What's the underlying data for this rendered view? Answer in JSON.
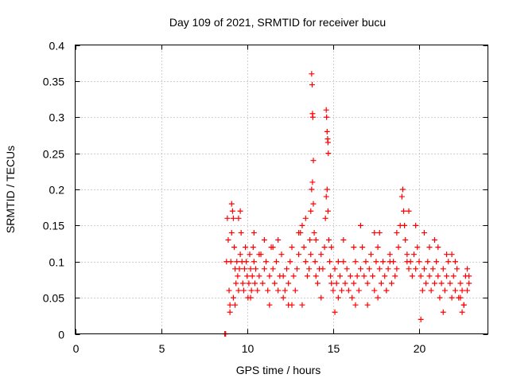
{
  "chart_data": {
    "type": "scatter",
    "title": "Day 109 of 2021, SRMTID for receiver bucu",
    "xlabel": "GPS time / hours",
    "ylabel": "SRMTID / TECUs",
    "xlim": [
      0,
      24
    ],
    "ylim": [
      0,
      0.4
    ],
    "xticks": [
      0,
      5,
      10,
      15,
      20
    ],
    "xtick_labels": [
      "0",
      "5",
      "10",
      "15",
      "20"
    ],
    "yticks": [
      0,
      0.05,
      0.1,
      0.15,
      0.2,
      0.25,
      0.3,
      0.35,
      0.4
    ],
    "ytick_labels": [
      "0",
      "0.05",
      "0.1",
      "0.15",
      "0.2",
      "0.25",
      "0.3",
      "0.35",
      "0.4"
    ],
    "grid": true,
    "marker": "+",
    "color": "#ff0000",
    "series": [
      {
        "name": "SRMTID",
        "x": [
          8.7,
          8.75,
          8.8,
          8.85,
          8.9,
          8.95,
          9.0,
          9.05,
          9.1,
          9.15,
          9.2,
          9.25,
          9.3,
          9.35,
          9.4,
          9.45,
          9.5,
          9.55,
          9.6,
          9.65,
          9.7,
          9.75,
          9.8,
          9.85,
          9.9,
          9.95,
          10.0,
          10.05,
          10.1,
          10.15,
          10.2,
          10.25,
          10.3,
          10.35,
          10.4,
          10.45,
          10.5,
          10.6,
          10.7,
          10.8,
          10.9,
          11.0,
          11.1,
          11.2,
          11.3,
          11.4,
          11.5,
          11.6,
          11.7,
          11.8,
          11.9,
          12.0,
          12.1,
          12.2,
          12.3,
          12.4,
          12.5,
          12.6,
          12.7,
          12.8,
          12.9,
          13.0,
          13.1,
          13.2,
          13.3,
          13.4,
          13.5,
          13.6,
          13.65,
          13.7,
          13.75,
          13.8,
          13.85,
          13.9,
          13.95,
          14.0,
          14.1,
          14.2,
          14.3,
          14.4,
          14.5,
          14.55,
          14.6,
          14.65,
          14.7,
          14.75,
          14.8,
          14.85,
          14.9,
          15.0,
          15.1,
          15.2,
          15.3,
          15.4,
          15.5,
          15.6,
          15.7,
          15.8,
          15.9,
          16.0,
          16.1,
          16.2,
          16.3,
          16.4,
          16.5,
          16.6,
          16.7,
          16.8,
          16.9,
          17.0,
          17.1,
          17.2,
          17.3,
          17.4,
          17.5,
          17.6,
          17.7,
          17.8,
          17.9,
          18.0,
          18.1,
          18.2,
          18.3,
          18.4,
          18.5,
          18.6,
          18.7,
          18.8,
          18.9,
          19.0,
          19.05,
          19.1,
          19.15,
          19.2,
          19.3,
          19.4,
          19.5,
          19.6,
          19.7,
          19.8,
          19.9,
          20.0,
          20.1,
          20.2,
          20.3,
          20.4,
          20.5,
          20.6,
          20.7,
          20.8,
          20.9,
          21.0,
          21.1,
          21.2,
          21.3,
          21.4,
          21.5,
          21.6,
          21.7,
          21.8,
          21.9,
          22.0,
          22.1,
          22.2,
          22.3,
          22.4,
          22.5,
          22.6,
          22.7,
          22.8,
          22.9,
          13.75,
          13.78,
          13.8,
          13.82,
          13.85,
          14.6,
          14.62,
          14.65,
          14.68,
          14.7,
          14.72,
          9.1,
          9.3,
          9.5,
          10.2,
          11.0,
          12.1,
          13.2,
          13.4,
          14.0,
          14.3,
          15.3,
          16.2,
          17.4,
          18.3,
          19.4,
          20.3,
          21.1,
          22.1,
          22.6,
          9.0,
          9.6,
          10.4,
          11.3,
          11.8,
          12.6,
          13.0,
          14.9,
          15.6,
          16.6,
          17.0,
          17.7,
          18.7,
          19.8,
          20.6,
          21.4,
          21.9,
          22.4,
          22.8,
          9.2,
          10.7,
          11.5,
          12.4,
          13.7,
          15.1,
          16.3,
          17.6,
          18.1,
          19.3,
          20.1,
          20.9,
          21.6,
          22.5,
          22.9
        ],
        "y": [
          0.0,
          0.0,
          0.1,
          0.16,
          0.13,
          0.06,
          0.04,
          0.1,
          0.14,
          0.17,
          0.16,
          0.12,
          0.09,
          0.07,
          0.1,
          0.08,
          0.06,
          0.09,
          0.11,
          0.14,
          0.1,
          0.07,
          0.06,
          0.09,
          0.12,
          0.1,
          0.08,
          0.05,
          0.07,
          0.11,
          0.09,
          0.06,
          0.08,
          0.12,
          0.1,
          0.07,
          0.09,
          0.06,
          0.08,
          0.11,
          0.07,
          0.09,
          0.1,
          0.06,
          0.08,
          0.12,
          0.09,
          0.07,
          0.1,
          0.06,
          0.08,
          0.11,
          0.08,
          0.06,
          0.09,
          0.07,
          0.1,
          0.12,
          0.08,
          0.06,
          0.09,
          0.11,
          0.14,
          0.15,
          0.12,
          0.1,
          0.08,
          0.09,
          0.13,
          0.17,
          0.2,
          0.21,
          0.18,
          0.14,
          0.1,
          0.08,
          0.07,
          0.09,
          0.11,
          0.09,
          0.12,
          0.16,
          0.19,
          0.2,
          0.17,
          0.13,
          0.1,
          0.08,
          0.07,
          0.06,
          0.09,
          0.07,
          0.05,
          0.08,
          0.06,
          0.1,
          0.07,
          0.09,
          0.06,
          0.08,
          0.05,
          0.07,
          0.1,
          0.08,
          0.06,
          0.09,
          0.12,
          0.08,
          0.1,
          0.07,
          0.09,
          0.11,
          0.08,
          0.06,
          0.1,
          0.12,
          0.09,
          0.07,
          0.1,
          0.08,
          0.06,
          0.09,
          0.11,
          0.07,
          0.1,
          0.08,
          0.09,
          0.12,
          0.15,
          0.19,
          0.2,
          0.17,
          0.15,
          0.13,
          0.11,
          0.09,
          0.1,
          0.08,
          0.11,
          0.09,
          0.12,
          0.1,
          0.08,
          0.06,
          0.09,
          0.07,
          0.1,
          0.08,
          0.06,
          0.09,
          0.07,
          0.1,
          0.08,
          0.05,
          0.07,
          0.09,
          0.06,
          0.08,
          0.1,
          0.07,
          0.05,
          0.08,
          0.06,
          0.09,
          0.05,
          0.07,
          0.06,
          0.04,
          0.08,
          0.06,
          0.07,
          0.36,
          0.345,
          0.305,
          0.3,
          0.24,
          0.31,
          0.3,
          0.28,
          0.27,
          0.265,
          0.25,
          0.18,
          0.04,
          0.16,
          0.05,
          0.13,
          0.05,
          0.04,
          0.16,
          0.13,
          0.05,
          0.1,
          0.12,
          0.14,
          0.1,
          0.17,
          0.14,
          0.12,
          0.1,
          0.04,
          0.03,
          0.17,
          0.14,
          0.04,
          0.13,
          0.04,
          0.14,
          0.12,
          0.13,
          0.15,
          0.04,
          0.14,
          0.14,
          0.15,
          0.12,
          0.03,
          0.11,
          0.05,
          0.09,
          0.05,
          0.11,
          0.12,
          0.04,
          0.11,
          0.03,
          0.04,
          0.05,
          0.06,
          0.1,
          0.02,
          0.13,
          0.11,
          0.03,
          0.08
        ]
      }
    ]
  }
}
